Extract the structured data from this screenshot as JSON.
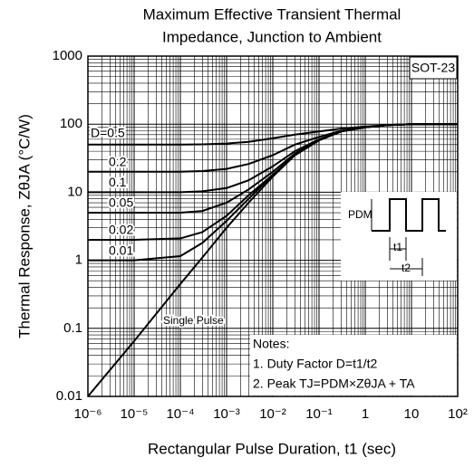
{
  "chart_data": {
    "type": "line",
    "title": [
      "Maximum Effective Transient Thermal",
      "Impedance, Junction to Ambient"
    ],
    "x_label": "Rectangular Pulse Duration, t1 (sec)",
    "y_label": "Thermal Response, ZθJA (°C/W)",
    "x": [
      1e-06,
      1e-05,
      0.0001,
      0.0003,
      0.001,
      0.003,
      0.01,
      0.03,
      0.1,
      0.3,
      1,
      3,
      10,
      100
    ],
    "series": [
      {
        "name": "D=0.5",
        "color": "#000000",
        "values": [
          50,
          50,
          50,
          50.5,
          52,
          55,
          62,
          70,
          78,
          86,
          92,
          97,
          100,
          100
        ]
      },
      {
        "name": "0.2",
        "color": "#000000",
        "values": [
          20,
          20,
          20,
          20.5,
          22,
          26,
          35,
          50,
          65,
          80,
          90,
          97,
          100,
          100
        ]
      },
      {
        "name": "0.1",
        "color": "#000000",
        "values": [
          10,
          10,
          10,
          10.3,
          11.5,
          15,
          24,
          40,
          60,
          78,
          90,
          97,
          100,
          100
        ]
      },
      {
        "name": "0.05",
        "color": "#000000",
        "values": [
          5,
          5,
          5,
          5.3,
          7,
          11,
          20,
          37,
          58,
          78,
          90,
          97,
          100,
          100
        ]
      },
      {
        "name": "0.02",
        "color": "#000000",
        "values": [
          2,
          2,
          2.1,
          2.6,
          4.5,
          9,
          18,
          35,
          58,
          78,
          90,
          97,
          100,
          100
        ]
      },
      {
        "name": "0.01",
        "color": "#000000",
        "values": [
          1,
          1,
          1.15,
          1.8,
          3.8,
          8,
          18,
          35,
          58,
          78,
          90,
          97,
          100,
          100
        ]
      },
      {
        "name": "Single Pulse",
        "color": "#000000",
        "values": [
          0.01,
          0.065,
          0.45,
          1.1,
          3,
          7,
          17,
          35,
          58,
          78,
          90,
          97,
          100,
          100
        ]
      }
    ],
    "xlim": [
      1e-06,
      100
    ],
    "ylim": [
      0.01,
      1000
    ],
    "xticks": [
      {
        "value": 1e-06,
        "label": "10⁻⁶"
      },
      {
        "value": 1e-05,
        "label": "10⁻⁵"
      },
      {
        "value": 0.0001,
        "label": "10⁻⁴"
      },
      {
        "value": 0.001,
        "label": "10⁻³"
      },
      {
        "value": 0.01,
        "label": "10⁻²"
      },
      {
        "value": 0.1,
        "label": "10⁻¹"
      },
      1,
      10,
      {
        "value": 100,
        "label": "10²"
      }
    ],
    "yticks": [
      0.01,
      0.1,
      1,
      10,
      100,
      1000
    ],
    "log_x": true,
    "log_y": true,
    "grid": true,
    "annotations": {
      "package": "SOT-23",
      "notes": [
        "Notes:",
        "1. Duty Factor D=t1/t2",
        "2. Peak TJ=PDM×ZθJA + TA"
      ],
      "pulse_labels": [
        "PDM",
        "t1",
        "t2"
      ]
    }
  }
}
